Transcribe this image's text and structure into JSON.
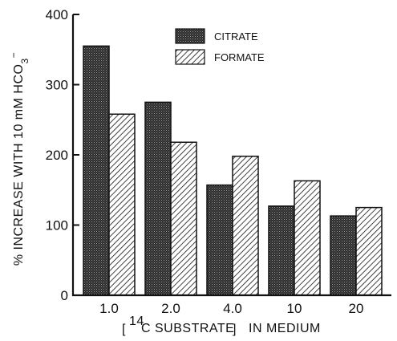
{
  "chart_data": {
    "type": "bar",
    "title": "",
    "xlabel": "[14C SUBSTRATE] IN MEDIUM",
    "xlabel_super": "14",
    "xlabel_rest": "C SUBSTRATE",
    "xlabel_tail": "IN MEDIUM",
    "ylabel": "% INCREASE WITH 10 mM HCO3−",
    "ylabel_main": "% INCREASE WITH 10 mM HCO",
    "ylabel_sub": "3",
    "ylabel_sup": "−",
    "ylim": [
      0,
      400
    ],
    "yticks": [
      "0",
      "100",
      "200",
      "300",
      "400"
    ],
    "categories": [
      "1.0",
      "2.0",
      "4.0",
      "10",
      "20"
    ],
    "series": [
      {
        "name": "CITRATE",
        "values": [
          355,
          275,
          157,
          127,
          113
        ],
        "pattern": "stipple"
      },
      {
        "name": "FORMATE",
        "values": [
          258,
          218,
          198,
          163,
          125
        ],
        "pattern": "hatch"
      }
    ],
    "legend_position": "top-right",
    "grid": false,
    "colors": {
      "ink": "#111111",
      "stipple": "#3a3a3a",
      "hatch_bg": "#ffffff"
    }
  }
}
